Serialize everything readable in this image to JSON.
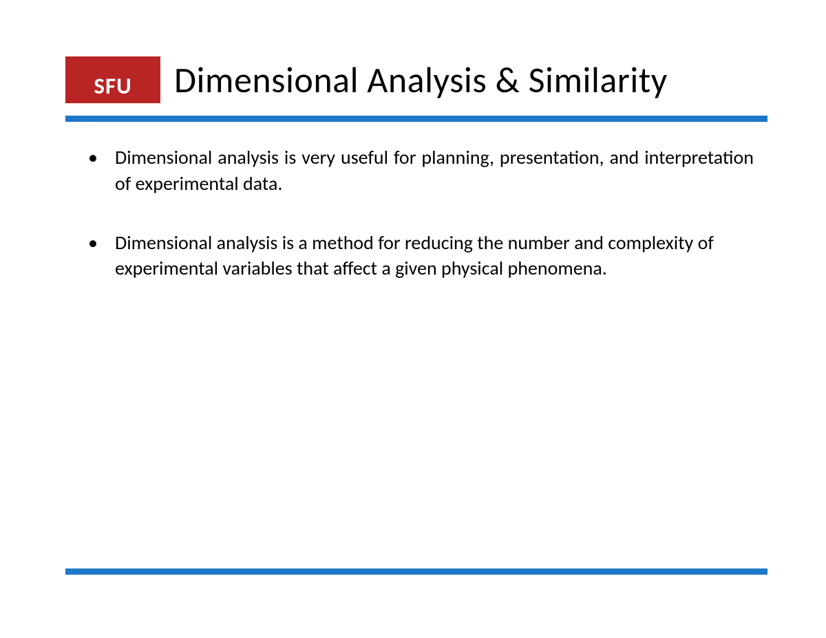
{
  "logo": {
    "text": "SFU",
    "bg_color": "#b92525",
    "text_color": "#ffffff"
  },
  "title": "Dimensional Analysis & Similarity",
  "rule_color": "#1f77c9",
  "background_color": "#ffffff",
  "text_color": "#000000",
  "title_fontsize": 52,
  "body_fontsize": 28,
  "bullets": [
    {
      "text": "Dimensional analysis is very useful for planning, presentation, and interpretation of experimental data.",
      "justify": true
    },
    {
      "text": "Dimensional analysis is a method for reducing the number and complexity of experimental variables that affect a given physical phenomena.",
      "justify": false
    }
  ]
}
